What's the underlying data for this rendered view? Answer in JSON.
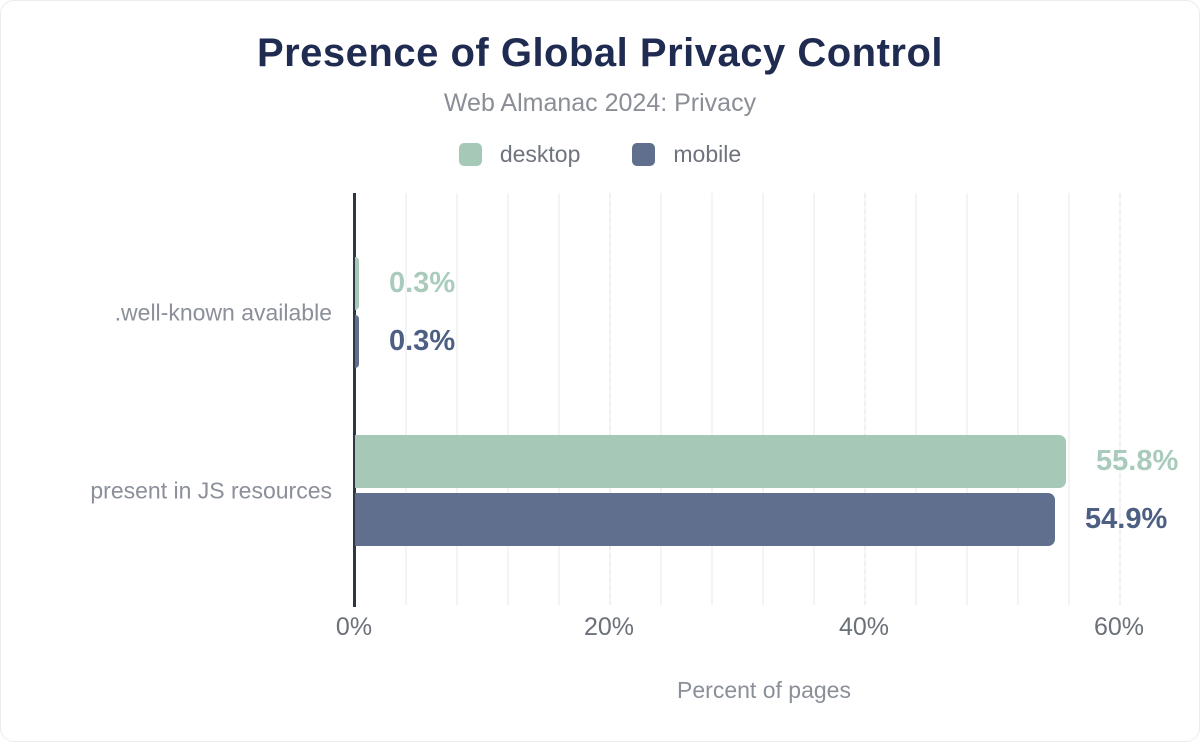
{
  "header": {
    "title": "Presence of Global Privacy Control",
    "subtitle": "Web Almanac 2024: Privacy"
  },
  "chart_data": {
    "type": "bar",
    "orientation": "horizontal",
    "title": "Presence of Global Privacy Control",
    "subtitle": "Web Almanac 2024: Privacy",
    "categories": [
      ".well-known available",
      "present in JS resources"
    ],
    "series": [
      {
        "name": "desktop",
        "color": "#a6c9b7",
        "label_color": "#a8cbbb",
        "values": [
          0.3,
          55.8
        ]
      },
      {
        "name": "mobile",
        "color": "#5f6f8d",
        "label_color": "#4d5f82",
        "values": [
          0.3,
          54.9
        ]
      }
    ],
    "value_label_format": "percent_one_decimal",
    "xlabel": "Percent of pages",
    "x_ticks": [
      {
        "value": 0,
        "label": "0%"
      },
      {
        "value": 20,
        "label": "20%"
      },
      {
        "value": 40,
        "label": "40%"
      },
      {
        "value": 60,
        "label": "60%"
      }
    ],
    "xlim": [
      0,
      64
    ],
    "grid": {
      "show": true,
      "minor_step_pct": 4,
      "major_step_pct": 20
    },
    "legend_position": "top"
  },
  "colors": {
    "background": "#ffffff",
    "title": "#1f2b50",
    "subtitle": "#8b8e96",
    "legend_label": "#6e737e",
    "category_label": "#8a8f9a",
    "tick_label": "#6b7079",
    "axis_title": "#8a8f98",
    "axis_line": "#2e3743",
    "gridline": "#f2f4f5"
  }
}
